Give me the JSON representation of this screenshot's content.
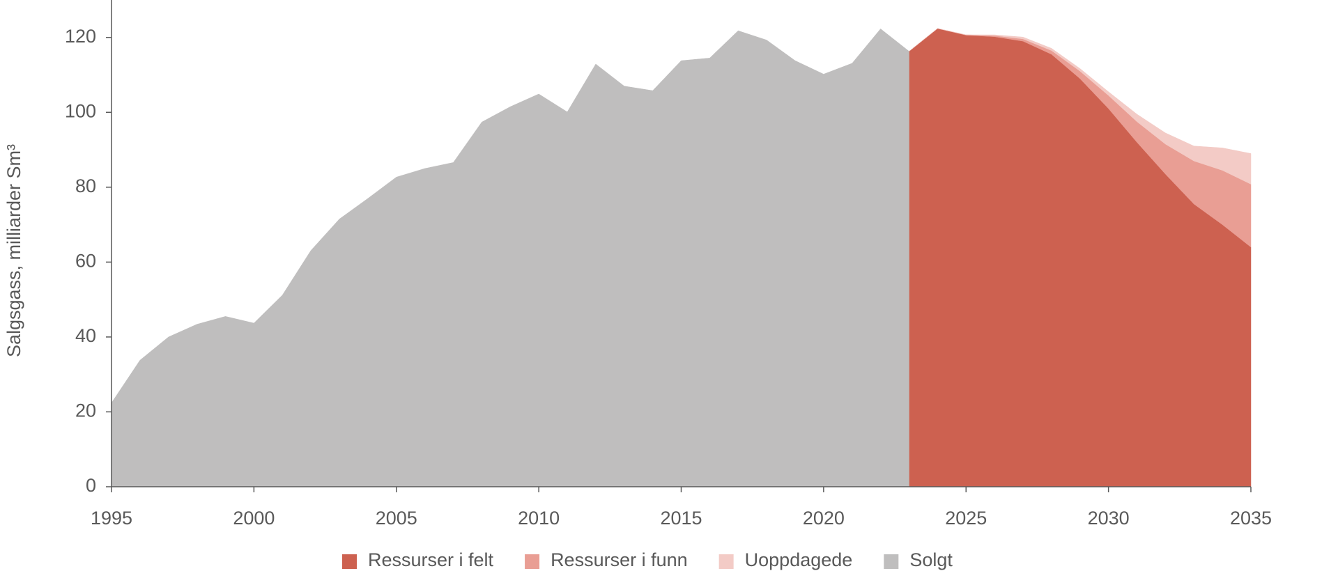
{
  "chart_data": {
    "type": "area",
    "y_label": "Salgsgass, milliarder Sm³",
    "x": [
      1995,
      1996,
      1997,
      1998,
      1999,
      2000,
      2001,
      2002,
      2003,
      2004,
      2005,
      2006,
      2007,
      2008,
      2009,
      2010,
      2011,
      2012,
      2013,
      2014,
      2015,
      2016,
      2017,
      2018,
      2019,
      2020,
      2021,
      2022,
      2023,
      2024,
      2025,
      2026,
      2027,
      2028,
      2029,
      2030,
      2031,
      2032,
      2033,
      2034,
      2035
    ],
    "xlim": [
      1995,
      2035
    ],
    "xticks": [
      1995,
      2000,
      2005,
      2010,
      2015,
      2020,
      2025,
      2030,
      2035
    ],
    "ylim": [
      0,
      130
    ],
    "yticks": [
      0,
      20,
      40,
      60,
      80,
      100,
      120
    ],
    "series": [
      {
        "name": "Ressurser i felt",
        "color": "#cd6150",
        "stacked": true,
        "values": [
          null,
          null,
          null,
          null,
          null,
          null,
          null,
          null,
          null,
          null,
          null,
          null,
          null,
          null,
          null,
          null,
          null,
          null,
          null,
          null,
          null,
          null,
          null,
          null,
          null,
          null,
          null,
          null,
          116.3,
          122.4,
          120.6,
          120.2,
          119,
          115.5,
          109,
          101,
          92,
          83.5,
          75.5,
          70,
          64
        ]
      },
      {
        "name": "Ressurser i funn",
        "color": "#e99e94",
        "stacked": true,
        "values": [
          null,
          null,
          null,
          null,
          null,
          null,
          null,
          null,
          null,
          null,
          null,
          null,
          null,
          null,
          null,
          null,
          null,
          null,
          null,
          null,
          null,
          null,
          null,
          null,
          null,
          null,
          null,
          null,
          0,
          0,
          0.1,
          0.3,
          0.6,
          1,
          2,
          3.5,
          5.5,
          8,
          11.5,
          14.5,
          16.8
        ]
      },
      {
        "name": "Uoppdagede",
        "color": "#f3cbc6",
        "stacked": true,
        "values": [
          null,
          null,
          null,
          null,
          null,
          null,
          null,
          null,
          null,
          null,
          null,
          null,
          null,
          null,
          null,
          null,
          null,
          null,
          null,
          null,
          null,
          null,
          null,
          null,
          null,
          null,
          null,
          null,
          0,
          0,
          0,
          0.2,
          0.5,
          0.6,
          0.7,
          1,
          2,
          3,
          4,
          6,
          8.2
        ]
      },
      {
        "name": "Solgt",
        "color": "#bfbebe",
        "stacked": false,
        "values": [
          22.4,
          33.8,
          40,
          43.4,
          45.5,
          43.7,
          51.2,
          63.1,
          71.5,
          77,
          82.7,
          85,
          86.6,
          97.4,
          101.5,
          104.9,
          100.1,
          112.9,
          107,
          105.8,
          113.8,
          114.5,
          121.8,
          119.3,
          113.8,
          110.2,
          113.1,
          122.3,
          116.3,
          null,
          null,
          null,
          null,
          null,
          null,
          null,
          null,
          null,
          null,
          null,
          null
        ]
      }
    ]
  }
}
